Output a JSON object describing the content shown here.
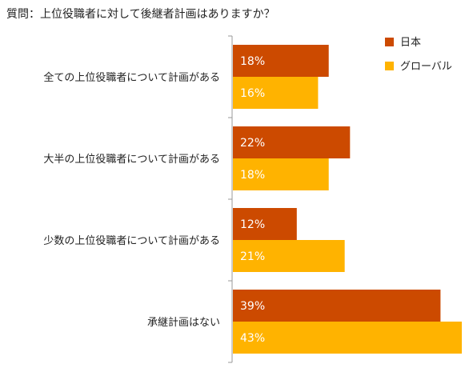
{
  "chart_data": {
    "type": "bar",
    "orientation": "horizontal",
    "title": "質問：上位役職者に対して後継者計画はありますか？",
    "categories": [
      "全ての上位役職者について計画がある",
      "大半の上位役職者について計画がある",
      "少数の上位役職者について計画がある",
      "承継計画はない"
    ],
    "series": [
      {
        "name": "日本",
        "values": [
          18,
          22,
          12,
          39
        ],
        "labels": [
          "18%",
          "22%",
          "12%",
          "39%"
        ],
        "color": "#cc4a00"
      },
      {
        "name": "グローバル",
        "values": [
          16,
          18,
          21,
          43
        ],
        "labels": [
          "16%",
          "18%",
          "21%",
          "43%"
        ],
        "color": "#ffb300"
      }
    ],
    "xlim": [
      0,
      43
    ],
    "grid": false,
    "legend_position": "top-right"
  }
}
